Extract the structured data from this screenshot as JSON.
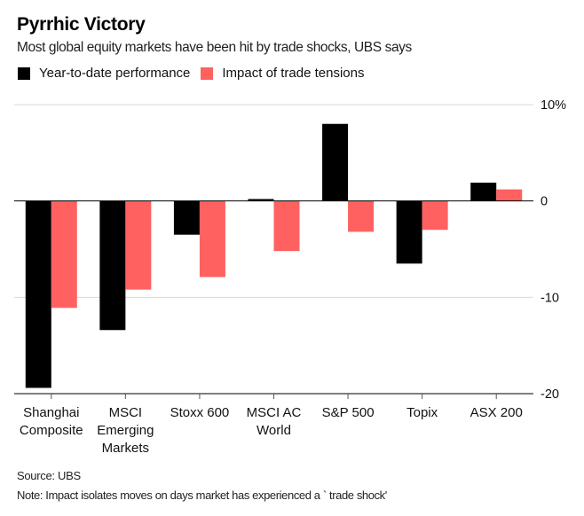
{
  "chart_data": {
    "type": "bar",
    "title": "Pyrrhic Victory",
    "subtitle": "Most global equity markets have been hit by trade shocks, UBS says",
    "categories": [
      [
        "Shanghai",
        "Composite"
      ],
      [
        "MSCI",
        "Emerging",
        "Markets"
      ],
      [
        "Stoxx 600"
      ],
      [
        "MSCI AC",
        "World"
      ],
      [
        "S&P 500"
      ],
      [
        "Topix"
      ],
      [
        "ASX 200"
      ]
    ],
    "series": [
      {
        "name": "Year-to-date performance",
        "color": "#000000",
        "values": [
          -19.4,
          -13.4,
          -3.5,
          0.2,
          8.0,
          -6.5,
          1.9
        ]
      },
      {
        "name": "Impact of trade tensions",
        "color": "#ff6161",
        "values": [
          -11.1,
          -9.2,
          -7.9,
          -5.2,
          -3.2,
          -3.0,
          1.2
        ]
      }
    ],
    "y_ticks": [
      10,
      0,
      -10,
      -20
    ],
    "y_tick_labels": [
      "10%",
      "0",
      "-10",
      "-20"
    ],
    "ylim": [
      -20,
      10
    ],
    "xlabel": "",
    "ylabel": "",
    "legend_position": "top-left",
    "grid": true
  },
  "source": "Source: UBS",
  "note": "Note: Impact isolates moves on days market has experienced a ` trade shock'"
}
